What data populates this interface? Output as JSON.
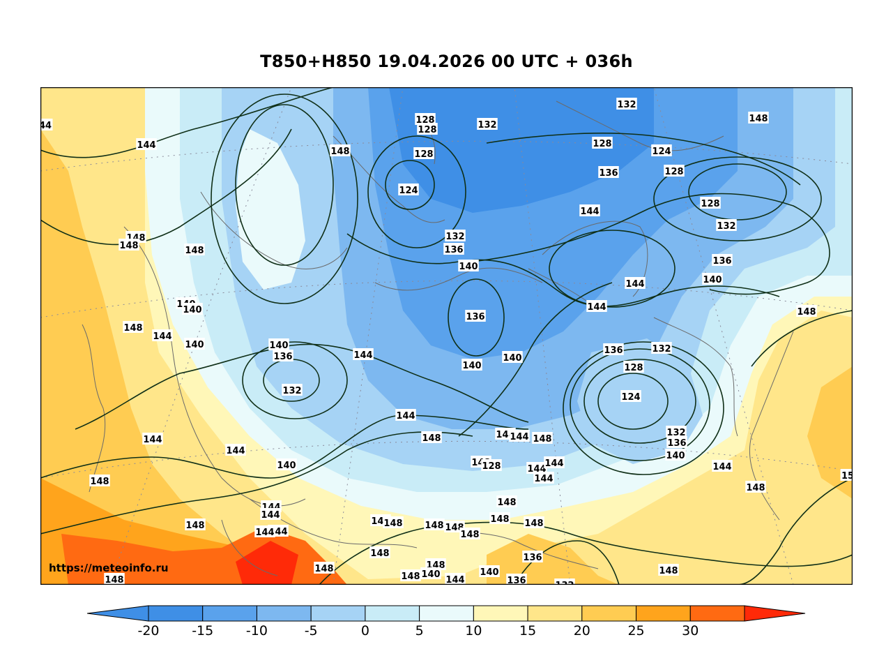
{
  "title": "T850+H850 19.04.2026 00 UTC + 036h",
  "watermark": "https://meteoinfo.ru",
  "map": {
    "field": "T850",
    "contour_field": "H850",
    "colors": {
      "m20": "#3f8fe6",
      "m15": "#5aa2ec",
      "m10": "#7db8f0",
      "m5": "#a6d3f5",
      "m0": "#c9ecf7",
      "p0": "#eafafb",
      "p5": "#fff7b8",
      "p10": "#ffe68a",
      "p15": "#ffcc52",
      "p20": "#ffa41c",
      "p25": "#ff6a12",
      "p30": "#ff2a08",
      "contour": "#0f2f17",
      "coast": "#6a6a6a",
      "grid": "#8a8a9a"
    },
    "isoline_labels": [
      {
        "text": "44"
      },
      {
        "text": "144"
      },
      {
        "text": "148"
      },
      {
        "text": "128"
      },
      {
        "text": "128"
      },
      {
        "text": "132"
      },
      {
        "text": "128"
      },
      {
        "text": "124"
      },
      {
        "text": "128"
      },
      {
        "text": "124"
      },
      {
        "text": "132"
      },
      {
        "text": "136"
      },
      {
        "text": "128"
      },
      {
        "text": "148"
      },
      {
        "text": "148"
      },
      {
        "text": "148"
      },
      {
        "text": "148"
      },
      {
        "text": "132"
      },
      {
        "text": "136"
      },
      {
        "text": "144"
      },
      {
        "text": "128"
      },
      {
        "text": "132"
      },
      {
        "text": "140"
      },
      {
        "text": "136"
      },
      {
        "text": "140"
      },
      {
        "text": "144"
      },
      {
        "text": "140"
      },
      {
        "text": "140"
      },
      {
        "text": "136"
      },
      {
        "text": "144"
      },
      {
        "text": "148"
      },
      {
        "text": "144"
      },
      {
        "text": "140"
      },
      {
        "text": "140"
      },
      {
        "text": "136"
      },
      {
        "text": "144"
      },
      {
        "text": "140"
      },
      {
        "text": "140"
      },
      {
        "text": "136"
      },
      {
        "text": "132"
      },
      {
        "text": "132"
      },
      {
        "text": "128"
      },
      {
        "text": "124"
      },
      {
        "text": "132"
      },
      {
        "text": "136"
      },
      {
        "text": "140"
      },
      {
        "text": "144"
      },
      {
        "text": "144"
      },
      {
        "text": "148"
      },
      {
        "text": "144"
      },
      {
        "text": "144"
      },
      {
        "text": "144"
      },
      {
        "text": "144"
      },
      {
        "text": "148"
      },
      {
        "text": "148"
      },
      {
        "text": "128"
      },
      {
        "text": "144"
      },
      {
        "text": "144"
      },
      {
        "text": "144"
      },
      {
        "text": "140"
      },
      {
        "text": "148"
      },
      {
        "text": "148"
      },
      {
        "text": "148"
      },
      {
        "text": "148"
      },
      {
        "text": "148"
      },
      {
        "text": "15"
      },
      {
        "text": "148"
      },
      {
        "text": "148"
      },
      {
        "text": "148"
      },
      {
        "text": "148"
      },
      {
        "text": "144"
      },
      {
        "text": "144"
      },
      {
        "text": "144"
      },
      {
        "text": "144"
      },
      {
        "text": "148"
      },
      {
        "text": "148"
      },
      {
        "text": "148"
      },
      {
        "text": "148"
      },
      {
        "text": "136"
      },
      {
        "text": "148"
      },
      {
        "text": "148"
      },
      {
        "text": "140"
      },
      {
        "text": "144"
      },
      {
        "text": "140"
      },
      {
        "text": "136"
      },
      {
        "text": "132"
      },
      {
        "text": "148"
      },
      {
        "text": "148"
      },
      {
        "text": "148"
      }
    ]
  },
  "colorbar": {
    "ticks": [
      "-20",
      "-15",
      "-10",
      "-5",
      "0",
      "5",
      "10",
      "15",
      "20",
      "25",
      "30"
    ],
    "segments": [
      "#3f8fe6",
      "#5aa2ec",
      "#7db8f0",
      "#a6d3f5",
      "#c9ecf7",
      "#eafafb",
      "#fff7b8",
      "#ffe68a",
      "#ffcc52",
      "#ffa41c",
      "#ff6a12"
    ],
    "under_color": "#3f8fe6",
    "over_color": "#ff2a08"
  }
}
